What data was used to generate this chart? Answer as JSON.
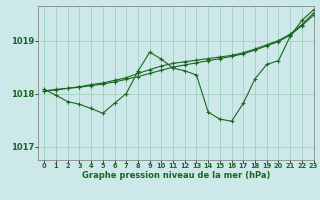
{
  "background_color": "#cce8e8",
  "grid_color": "#99ccbb",
  "line_color": "#1a6620",
  "title": "Graphe pression niveau de la mer (hPa)",
  "xlim": [
    -0.5,
    23
  ],
  "ylim": [
    1016.75,
    1019.65
  ],
  "yticks": [
    1017,
    1018,
    1019
  ],
  "xticks": [
    0,
    1,
    2,
    3,
    4,
    5,
    6,
    7,
    8,
    9,
    10,
    11,
    12,
    13,
    14,
    15,
    16,
    17,
    18,
    19,
    20,
    21,
    22,
    23
  ],
  "series_main": [
    1018.08,
    1017.97,
    1017.85,
    1017.8,
    1017.72,
    1017.63,
    1017.82,
    1018.0,
    1018.42,
    1018.78,
    1018.65,
    1018.48,
    1018.43,
    1018.35,
    1017.65,
    1017.52,
    1017.48,
    1017.82,
    1018.28,
    1018.55,
    1018.62,
    1019.08,
    1019.38,
    1019.58
  ],
  "series_trend1": [
    1018.05,
    1018.07,
    1018.1,
    1018.12,
    1018.15,
    1018.18,
    1018.22,
    1018.27,
    1018.32,
    1018.38,
    1018.44,
    1018.5,
    1018.54,
    1018.58,
    1018.62,
    1018.66,
    1018.7,
    1018.75,
    1018.82,
    1018.9,
    1018.98,
    1019.1,
    1019.28,
    1019.48
  ],
  "series_trend2": [
    1018.05,
    1018.08,
    1018.1,
    1018.13,
    1018.17,
    1018.2,
    1018.25,
    1018.3,
    1018.38,
    1018.45,
    1018.52,
    1018.57,
    1018.6,
    1018.63,
    1018.66,
    1018.69,
    1018.72,
    1018.77,
    1018.84,
    1018.92,
    1019.0,
    1019.12,
    1019.3,
    1019.52
  ]
}
